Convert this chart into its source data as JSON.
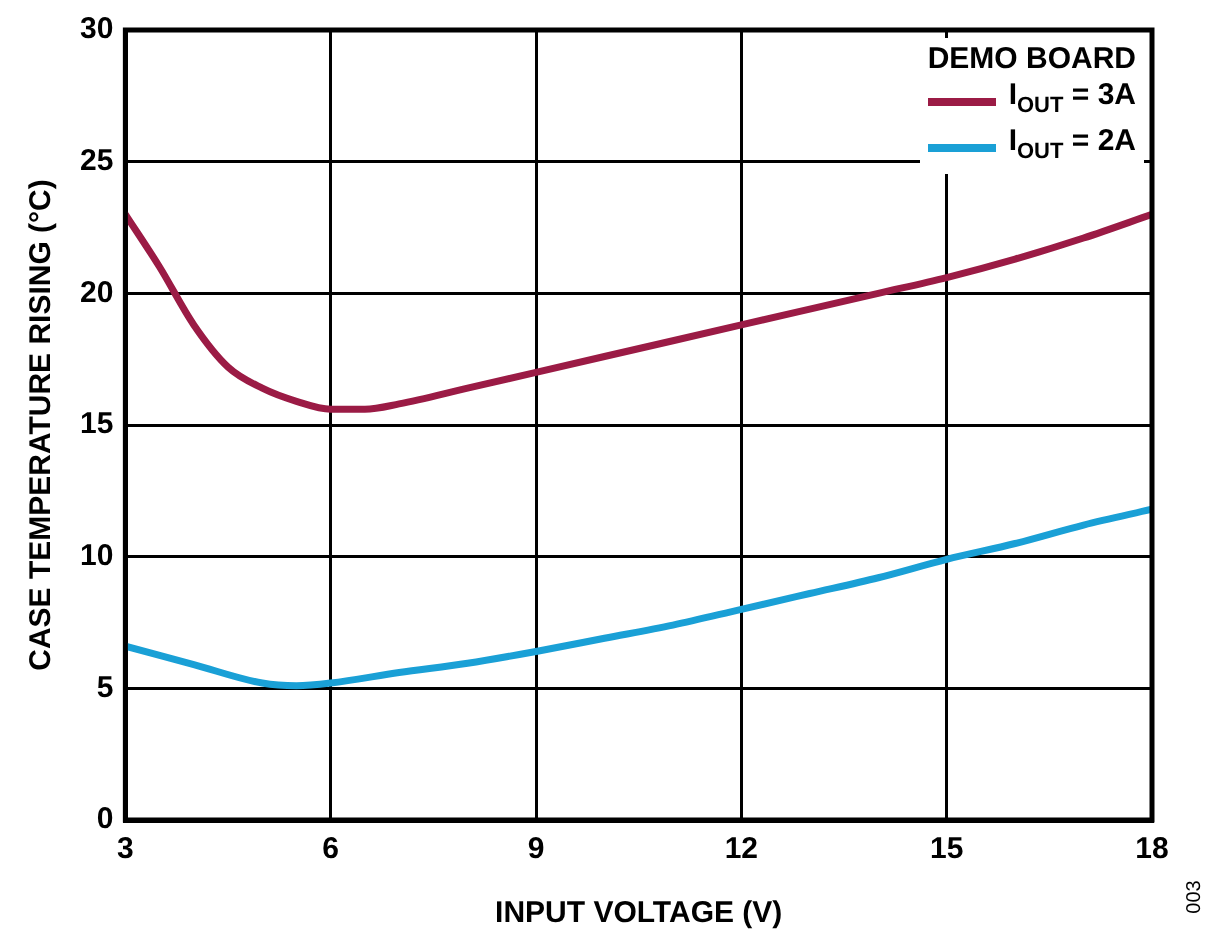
{
  "chart_data": {
    "type": "line",
    "xlabel": "INPUT VOLTAGE (V)",
    "ylabel": "CASE TEMPERATURE RISING (°C)",
    "legend_title": "DEMO BOARD",
    "legend": "top right",
    "grid": true,
    "marker": "none",
    "line_style": "solid",
    "xlim": [
      3,
      18
    ],
    "xticks": [
      3,
      6,
      9,
      12,
      15,
      18
    ],
    "ylim": [
      0,
      30
    ],
    "yticks": [
      0,
      5,
      10,
      15,
      20,
      25,
      30
    ],
    "annotations": [
      "003"
    ],
    "series": [
      {
        "name": "I$_{OUT}$ = 3A",
        "color": "#9b1b45",
        "x": [
          3,
          3.5,
          4,
          4.5,
          5,
          5.5,
          6,
          6.5,
          7,
          8,
          9,
          10,
          11,
          12,
          13,
          14,
          15,
          16,
          17,
          18
        ],
        "values": [
          23,
          21,
          18.8,
          17.2,
          16.4,
          15.9,
          15.6,
          15.6,
          15.8,
          16.4,
          17,
          17.6,
          18.2,
          18.8,
          19.4,
          20,
          20.6,
          21.3,
          22.1,
          23
        ]
      },
      {
        "name": "I$_{OUT}$ = 2A",
        "color": "#1aa0d6",
        "x": [
          3,
          4,
          5,
          5.5,
          6,
          7,
          8,
          9,
          10,
          11,
          12,
          13,
          14,
          15,
          16,
          17,
          18
        ],
        "values": [
          6.6,
          5.9,
          5.2,
          5.1,
          5.2,
          5.6,
          5.95,
          6.4,
          6.9,
          7.4,
          8,
          8.6,
          9.2,
          9.9,
          10.5,
          11.2,
          11.8
        ]
      }
    ]
  }
}
